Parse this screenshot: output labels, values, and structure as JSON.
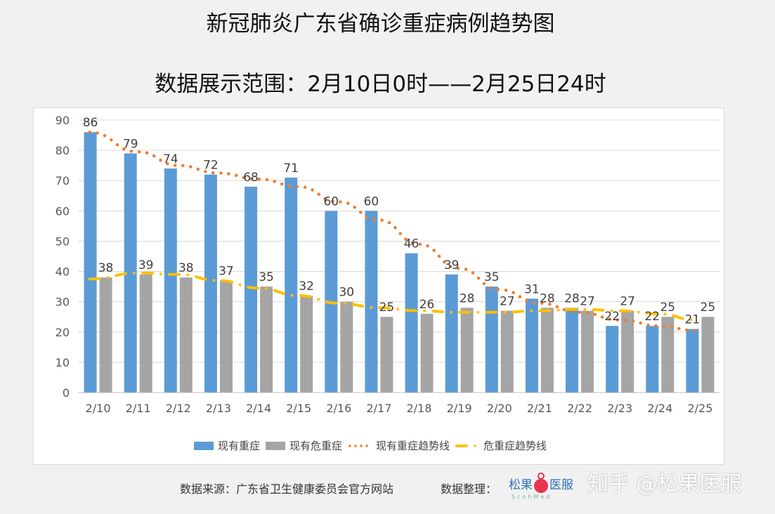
{
  "title": "新冠肺炎广东省确诊重症病例趋势图",
  "subtitle": "数据展示范围：2月10日0时——2月25日24时",
  "chart_data": {
    "type": "bar",
    "title": "新冠肺炎广东省确诊重症病例趋势图",
    "subtitle": "数据展示范围：2月10日0时——2月25日24时",
    "categories": [
      "2/10",
      "2/11",
      "2/12",
      "2/13",
      "2/14",
      "2/15",
      "2/16",
      "2/17",
      "2/18",
      "2/19",
      "2/20",
      "2/21",
      "2/22",
      "2/23",
      "2/24",
      "2/25"
    ],
    "ylim": [
      0,
      90
    ],
    "yticks": [
      0,
      10,
      20,
      30,
      40,
      50,
      60,
      70,
      80,
      90
    ],
    "grid": true,
    "legend_position": "bottom",
    "series": [
      {
        "name": "现有重症",
        "kind": "bar",
        "color": "#5b9bd5",
        "values": [
          86,
          79,
          74,
          72,
          68,
          71,
          60,
          60,
          46,
          39,
          35,
          31,
          28,
          22,
          22,
          21
        ]
      },
      {
        "name": "现有危重症",
        "kind": "bar",
        "color": "#a5a5a5",
        "values": [
          38,
          39,
          38,
          37,
          35,
          32,
          30,
          25,
          26,
          28,
          27,
          28,
          27,
          27,
          25,
          25
        ]
      },
      {
        "name": "现有重症趋势线",
        "kind": "trendline-dotted",
        "color": "#ed7d31",
        "values": [
          86,
          79.5,
          75,
          72.5,
          70.5,
          68,
          63,
          57,
          49,
          41,
          34,
          29.5,
          26.5,
          24,
          22,
          20.5
        ]
      },
      {
        "name": "危重症趋势线",
        "kind": "trendline-dashed",
        "color": "#ffc000",
        "values": [
          37.5,
          39.5,
          39,
          37,
          34.5,
          32,
          29.5,
          28,
          27,
          26.5,
          26.5,
          27,
          27.5,
          27,
          26,
          24
        ]
      }
    ]
  },
  "footer": {
    "source": "数据来源：广东省卫生健康委员会官方网站",
    "compiled": "数据整理：",
    "logo_text": "松果医服",
    "logo_sub": "ScohMed",
    "watermark": "知乎 @松果医服"
  }
}
